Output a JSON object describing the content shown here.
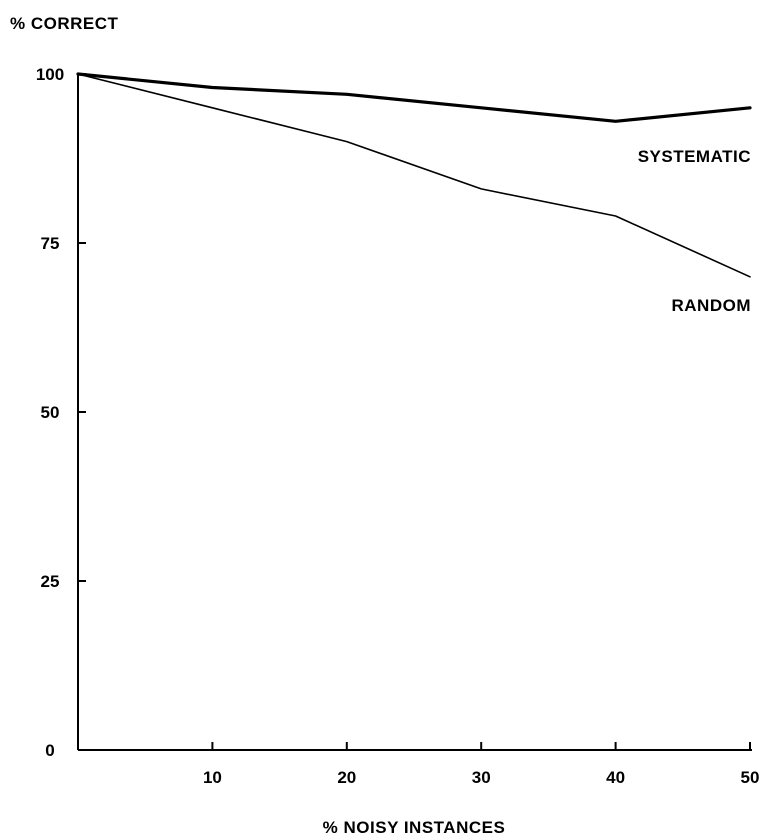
{
  "chart_data": {
    "type": "line",
    "title": "",
    "xlabel": "% NOISY INSTANCES",
    "ylabel": "% CORRECT",
    "xlim": [
      0,
      50
    ],
    "ylim": [
      0,
      100
    ],
    "x_ticks": [
      10,
      20,
      30,
      40,
      50
    ],
    "x_tick_labels": [
      "10",
      "20",
      "30",
      "40",
      "50"
    ],
    "y_ticks": [
      0,
      25,
      50,
      75,
      100
    ],
    "y_tick_labels": [
      "0",
      "25",
      "50",
      "75",
      "100"
    ],
    "grid": false,
    "legend": "none",
    "series": [
      {
        "name": "SYSTEMATIC",
        "x": [
          0,
          10,
          20,
          30,
          40,
          50
        ],
        "values": [
          100,
          98,
          97,
          95,
          93,
          95
        ]
      },
      {
        "name": "RANDOM",
        "x": [
          0,
          10,
          20,
          30,
          40,
          50
        ],
        "values": [
          100,
          95,
          90,
          83,
          79,
          70
        ]
      }
    ]
  }
}
